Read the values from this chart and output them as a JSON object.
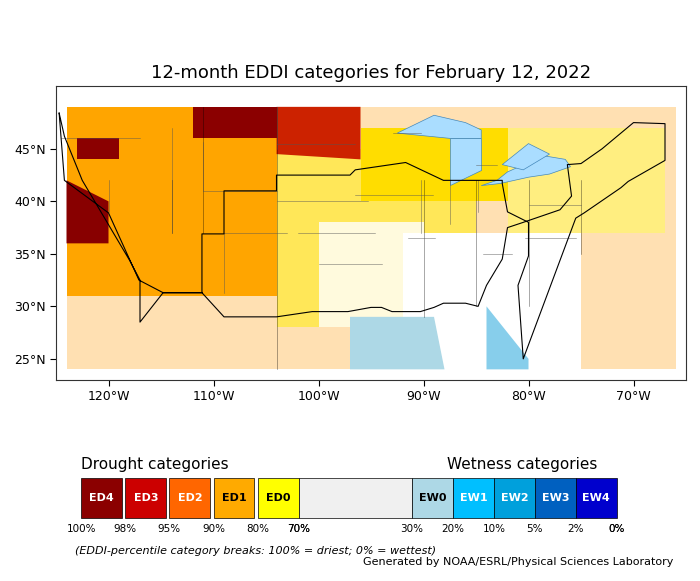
{
  "title": "12-month EDDI categories for February 12, 2022",
  "title_fontsize": 13,
  "xlim": [
    -125,
    -65
  ],
  "ylim": [
    23,
    51
  ],
  "xticks": [
    -120,
    -110,
    -100,
    -90,
    -80,
    -70
  ],
  "xtick_labels": [
    "120°W",
    "110°W",
    "100°W",
    "90°W",
    "80°W",
    "70°W"
  ],
  "yticks": [
    25,
    30,
    35,
    40,
    45
  ],
  "ytick_labels": [
    "25°N",
    "30°N",
    "35°N",
    "40°N",
    "45°N"
  ],
  "drought_categories": [
    "ED4",
    "ED3",
    "ED2",
    "ED1",
    "ED0"
  ],
  "drought_colors": [
    "#8B0000",
    "#CC0000",
    "#FF6600",
    "#FFAA00",
    "#FFFF00"
  ],
  "wetness_categories": [
    "EW0",
    "EW1",
    "EW2",
    "EW3",
    "EW4"
  ],
  "wetness_colors": [
    "#ADD8E6",
    "#00BFFF",
    "#00A0DC",
    "#0060C0",
    "#0000CD"
  ],
  "drought_pcts": [
    "100%",
    "98%",
    "95%",
    "90%",
    "80%",
    "70%"
  ],
  "wetness_pcts": [
    "30%",
    "20%",
    "10%",
    "5%",
    "2%",
    "0%"
  ],
  "drought_label": "Drought categories",
  "wetness_label": "Wetness categories",
  "footnote": "(EDDI-percentile category breaks: 100% = driest; 0% = wettest)",
  "credit": "Generated by NOAA/ESRL/Physical Sciences Laboratory",
  "background_color": "#FFFFFF",
  "map_background": "#FFFFFF",
  "border_color": "#000000",
  "ax_bg_color": "#FFFFFF",
  "fig_size": [
    7.0,
    5.81
  ],
  "dpi": 100
}
